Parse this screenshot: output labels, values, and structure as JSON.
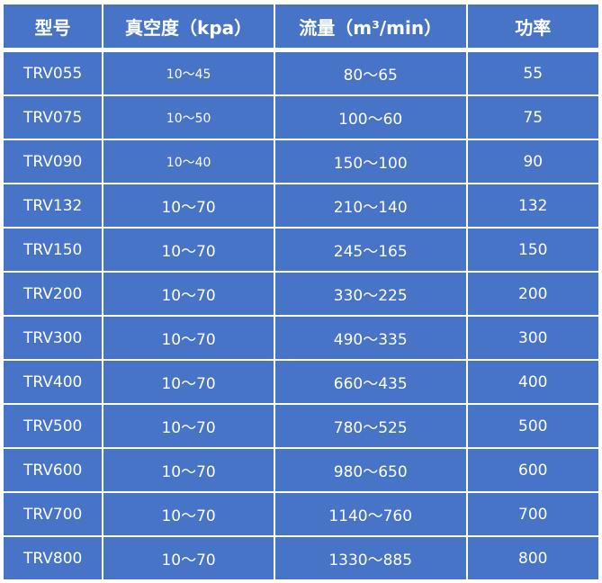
{
  "table": {
    "headers": [
      "型号",
      "真空度（kpa）",
      "流量（m³/min）",
      "功率"
    ],
    "rows": [
      [
        "TRV055",
        "10～45",
        "80～65",
        "55"
      ],
      [
        "TRV075",
        "10～50",
        "100～60",
        "75"
      ],
      [
        "TRV090",
        "10～40",
        "150～100",
        "90"
      ],
      [
        "TRV132",
        "10～70",
        "210～140",
        "132"
      ],
      [
        "TRV150",
        "10～70",
        "245～165",
        "150"
      ],
      [
        "TRV200",
        "10～70",
        "330～225",
        "200"
      ],
      [
        "TRV300",
        "10～70",
        "490～335",
        "300"
      ],
      [
        "TRV400",
        "10～70",
        "660～435",
        "400"
      ],
      [
        "TRV500",
        "10～70",
        "780～525",
        "500"
      ],
      [
        "TRV600",
        "10～70",
        "980～650",
        "600"
      ],
      [
        "TRV700",
        "10～70",
        "1140～760",
        "700"
      ],
      [
        "TRV800",
        "10～70",
        "1330～885",
        "800"
      ]
    ]
  },
  "colors": {
    "cell_background": "#4874c8",
    "text": "#ffffff",
    "grid": "#ffffff"
  }
}
